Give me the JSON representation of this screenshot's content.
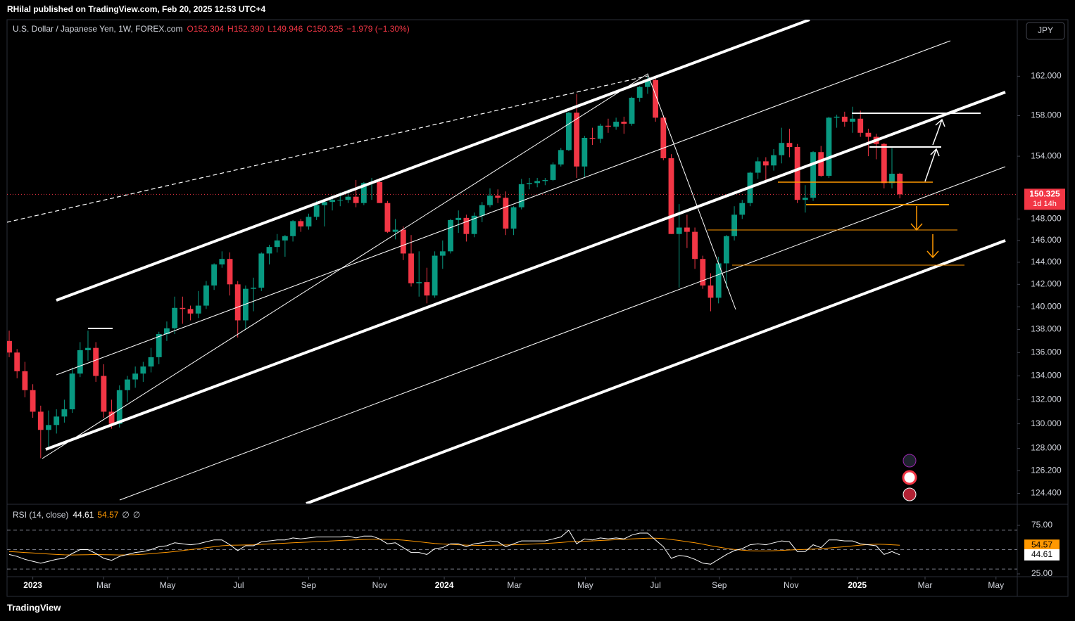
{
  "header": {
    "publisher": "RHilal published on TradingView.com, Feb 20, 2025 12:53 UTC+4"
  },
  "footer": {
    "brand": "TradingView"
  },
  "chart_data": [
    {
      "type": "candlestick",
      "title": "U.S. Dollar / Japanese Yen, 1W, FOREX.com",
      "ohlc_labels": [
        "O152.304",
        "H152.390",
        "L149.946",
        "C150.325"
      ],
      "change_label": "−1.979 (−1.30%)",
      "currency": "JPY",
      "last_price_label": "150.325",
      "countdown": "1d 14h",
      "up_color": "#089981",
      "down_color": "#f23645",
      "log_scale": true,
      "grid": false,
      "xlim": [
        -0.27,
        127.9
      ],
      "xticks": [
        {
          "value": 3,
          "label": "2023"
        },
        {
          "value": 12,
          "label": "Mar"
        },
        {
          "value": 20.1,
          "label": "May"
        },
        {
          "value": 29.1,
          "label": "Jul"
        },
        {
          "value": 38,
          "label": "Sep"
        },
        {
          "value": 47,
          "label": "Nov"
        },
        {
          "value": 55.2,
          "label": "2024"
        },
        {
          "value": 64.1,
          "label": "Mar"
        },
        {
          "value": 73.1,
          "label": "May"
        },
        {
          "value": 82,
          "label": "Jul"
        },
        {
          "value": 90.1,
          "label": "Sep"
        },
        {
          "value": 99.2,
          "label": "Nov"
        },
        {
          "value": 107.6,
          "label": "2025"
        },
        {
          "value": 116.2,
          "label": "Mar"
        },
        {
          "value": 125.2,
          "label": "May"
        }
      ],
      "ylim": [
        123.6,
        167.9
      ],
      "yticks": [
        {
          "value": 162,
          "label": "162.000"
        },
        {
          "value": 158,
          "label": "158.000"
        },
        {
          "value": 154,
          "label": "154.000"
        },
        {
          "value": 148,
          "label": "148.000"
        },
        {
          "value": 146,
          "label": "146.000"
        },
        {
          "value": 144,
          "label": "144.000"
        },
        {
          "value": 142,
          "label": "142.000"
        },
        {
          "value": 140,
          "label": "140.000"
        },
        {
          "value": 138,
          "label": "138.000"
        },
        {
          "value": 136,
          "label": "136.000"
        },
        {
          "value": 134,
          "label": "134.000"
        },
        {
          "value": 132,
          "label": "132.000"
        },
        {
          "value": 130,
          "label": "130.000"
        },
        {
          "value": 128,
          "label": "128.000"
        },
        {
          "value": 126.2,
          "label": "126.200"
        },
        {
          "value": 124.4,
          "label": "124.400"
        }
      ],
      "last_price": 150.325,
      "candles": [
        [
          137.0,
          137.9,
          135.6,
          136.0
        ],
        [
          136.0,
          136.3,
          133.8,
          134.4
        ],
        [
          134.4,
          135.2,
          132.2,
          132.8
        ],
        [
          132.8,
          133.3,
          130.5,
          131.0
        ],
        [
          131.0,
          131.5,
          127.2,
          129.5
        ],
        [
          129.5,
          131.1,
          128.0,
          129.9
        ],
        [
          129.9,
          131.2,
          129.2,
          130.6
        ],
        [
          130.6,
          132.0,
          130.1,
          131.2
        ],
        [
          131.2,
          134.7,
          130.9,
          134.2
        ],
        [
          134.2,
          136.9,
          133.9,
          136.2
        ],
        [
          136.2,
          137.9,
          135.3,
          136.4
        ],
        [
          136.4,
          136.9,
          133.5,
          134.0
        ],
        [
          134.0,
          135.0,
          130.5,
          131.0
        ],
        [
          131.0,
          132.0,
          129.6,
          130.0
        ],
        [
          130.0,
          133.2,
          129.7,
          132.8
        ],
        [
          132.8,
          134.0,
          131.8,
          133.7
        ],
        [
          133.7,
          134.8,
          133.0,
          134.2
        ],
        [
          134.2,
          135.2,
          133.5,
          134.8
        ],
        [
          134.8,
          136.4,
          134.3,
          135.6
        ],
        [
          135.6,
          137.8,
          135.0,
          137.6
        ],
        [
          137.6,
          138.7,
          137.0,
          138.1
        ],
        [
          138.1,
          140.9,
          137.6,
          139.9
        ],
        [
          139.9,
          140.9,
          138.5,
          139.8
        ],
        [
          139.8,
          140.1,
          138.8,
          139.4
        ],
        [
          139.4,
          141.4,
          139.0,
          140.1
        ],
        [
          140.1,
          142.3,
          139.8,
          141.9
        ],
        [
          141.9,
          143.9,
          141.5,
          143.8
        ],
        [
          143.8,
          145.0,
          143.5,
          144.3
        ],
        [
          144.3,
          144.9,
          141.0,
          142.0
        ],
        [
          142.0,
          142.3,
          137.3,
          138.8
        ],
        [
          138.8,
          141.9,
          138.0,
          141.6
        ],
        [
          141.6,
          142.6,
          139.6,
          141.7
        ],
        [
          141.7,
          144.9,
          141.4,
          144.8
        ],
        [
          144.8,
          145.6,
          143.8,
          145.4
        ],
        [
          145.4,
          146.6,
          144.9,
          146.0
        ],
        [
          146.0,
          146.5,
          144.5,
          146.4
        ],
        [
          146.4,
          147.9,
          145.9,
          147.8
        ],
        [
          147.8,
          148.0,
          146.8,
          147.3
        ],
        [
          147.3,
          148.5,
          147.0,
          148.2
        ],
        [
          148.2,
          149.7,
          147.9,
          149.3
        ],
        [
          149.3,
          149.8,
          147.3,
          149.6
        ],
        [
          149.6,
          150.2,
          148.8,
          149.8
        ],
        [
          149.8,
          150.5,
          149.2,
          149.8
        ],
        [
          149.8,
          150.8,
          149.5,
          150.1
        ],
        [
          150.1,
          151.7,
          149.1,
          149.5
        ],
        [
          149.5,
          151.5,
          149.3,
          151.4
        ],
        [
          151.4,
          151.9,
          149.8,
          151.5
        ],
        [
          151.5,
          151.9,
          149.5,
          149.5
        ],
        [
          149.5,
          149.7,
          146.7,
          146.8
        ],
        [
          146.8,
          148.0,
          146.1,
          147.0
        ],
        [
          147.0,
          147.3,
          144.2,
          144.8
        ],
        [
          144.8,
          146.5,
          141.8,
          142.1
        ],
        [
          142.1,
          145.0,
          140.9,
          142.2
        ],
        [
          142.2,
          143.5,
          140.3,
          141.0
        ],
        [
          141.0,
          145.0,
          140.8,
          144.6
        ],
        [
          144.6,
          146.0,
          143.4,
          145.0
        ],
        [
          145.0,
          148.0,
          144.8,
          147.9
        ],
        [
          147.9,
          148.8,
          146.7,
          148.1
        ],
        [
          148.1,
          148.4,
          145.9,
          146.6
        ],
        [
          146.6,
          148.6,
          146.3,
          148.3
        ],
        [
          148.3,
          149.6,
          147.7,
          149.3
        ],
        [
          149.3,
          150.9,
          149.1,
          150.2
        ],
        [
          150.2,
          150.8,
          149.5,
          150.0
        ],
        [
          150.0,
          150.6,
          146.5,
          147.1
        ],
        [
          147.1,
          149.2,
          146.5,
          149.1
        ],
        [
          149.1,
          151.8,
          148.9,
          151.3
        ],
        [
          151.3,
          151.9,
          150.8,
          151.4
        ],
        [
          151.4,
          151.9,
          151.0,
          151.6
        ],
        [
          151.6,
          151.9,
          151.2,
          151.7
        ],
        [
          151.7,
          153.4,
          151.6,
          153.2
        ],
        [
          153.2,
          154.8,
          153.0,
          154.6
        ],
        [
          154.6,
          158.4,
          154.5,
          158.3
        ],
        [
          158.3,
          160.2,
          151.9,
          153.0
        ],
        [
          153.0,
          156.0,
          152.0,
          155.8
        ],
        [
          155.8,
          156.8,
          155.1,
          155.7
        ],
        [
          155.7,
          157.2,
          155.3,
          157.0
        ],
        [
          157.0,
          157.7,
          156.3,
          156.9
        ],
        [
          156.9,
          157.8,
          156.6,
          157.4
        ],
        [
          157.4,
          157.9,
          156.2,
          157.2
        ],
        [
          157.2,
          159.9,
          157.0,
          159.8
        ],
        [
          159.8,
          161.0,
          159.4,
          160.9
        ],
        [
          160.9,
          161.95,
          160.2,
          161.6
        ],
        [
          161.6,
          161.8,
          157.4,
          157.8
        ],
        [
          157.8,
          158.0,
          153.6,
          153.8
        ],
        [
          153.8,
          154.2,
          146.6,
          146.6
        ],
        [
          146.6,
          149.4,
          141.7,
          147.2
        ],
        [
          147.2,
          148.4,
          145.3,
          146.8
        ],
        [
          146.8,
          147.2,
          143.4,
          144.3
        ],
        [
          144.3,
          144.6,
          141.6,
          141.9
        ],
        [
          141.9,
          143.0,
          139.6,
          140.8
        ],
        [
          140.8,
          144.5,
          140.3,
          143.9
        ],
        [
          143.9,
          146.5,
          141.7,
          146.4
        ],
        [
          146.4,
          149.2,
          146.0,
          148.4
        ],
        [
          148.4,
          149.8,
          148.0,
          149.5
        ],
        [
          149.5,
          152.5,
          149.2,
          152.4
        ],
        [
          152.4,
          153.9,
          151.8,
          153.5
        ],
        [
          153.5,
          153.9,
          151.6,
          153.1
        ],
        [
          153.1,
          154.7,
          152.6,
          154.1
        ],
        [
          154.1,
          156.8,
          153.3,
          155.3
        ],
        [
          155.3,
          156.7,
          153.9,
          154.9
        ],
        [
          154.9,
          155.2,
          149.5,
          149.8
        ],
        [
          149.8,
          151.2,
          148.6,
          150.0
        ],
        [
          150.0,
          154.5,
          149.7,
          154.4
        ],
        [
          154.4,
          155.0,
          152.0,
          152.1
        ],
        [
          152.1,
          157.9,
          151.9,
          157.8
        ],
        [
          157.8,
          158.1,
          156.8,
          157.9
        ],
        [
          157.9,
          158.4,
          156.9,
          157.4
        ],
        [
          157.4,
          158.9,
          156.3,
          157.7
        ],
        [
          157.7,
          158.5,
          155.9,
          156.3
        ],
        [
          156.3,
          156.7,
          154.0,
          155.9
        ],
        [
          155.9,
          156.2,
          153.7,
          155.2
        ],
        [
          155.2,
          155.3,
          150.9,
          151.4
        ],
        [
          151.4,
          154.8,
          150.9,
          152.3
        ],
        [
          152.304,
          152.39,
          149.946,
          150.325
        ]
      ]
    },
    {
      "type": "line",
      "title": "RSI (14, close)",
      "header_values": [
        "44.61",
        "54.57",
        "∅",
        "∅"
      ],
      "ylim": [
        22.1,
        96
      ],
      "yticks": [
        {
          "value": 75,
          "label": "75.00"
        },
        {
          "value": 25,
          "label": "25.00"
        }
      ],
      "levels": [
        70,
        50,
        30
      ],
      "series": [
        {
          "color": "#ffffff",
          "last_value_label": "44.61",
          "values": [
            45,
            43,
            40,
            38,
            36,
            38,
            40,
            41,
            46,
            50,
            50,
            46,
            41,
            39,
            43,
            45,
            47,
            48,
            50,
            53,
            54,
            57,
            56,
            55,
            56,
            58,
            60,
            60,
            55,
            49,
            54,
            54,
            58,
            59,
            60,
            60,
            62,
            61,
            62,
            63,
            63,
            63,
            63,
            64,
            62,
            64,
            64,
            61,
            56,
            57,
            52,
            47,
            47,
            45,
            51,
            52,
            56,
            56,
            53,
            56,
            57,
            59,
            58,
            53,
            56,
            59,
            59,
            59,
            59,
            61,
            63,
            70,
            56,
            61,
            60,
            62,
            61,
            62,
            61,
            65,
            67,
            67,
            60,
            53,
            41,
            44,
            43,
            40,
            36,
            35,
            40,
            45,
            49,
            51,
            55,
            56,
            55,
            57,
            59,
            58,
            48,
            48,
            55,
            52,
            60,
            60,
            59,
            59,
            56,
            55,
            54,
            45,
            48,
            44.61
          ]
        },
        {
          "color": "#ff9800",
          "last_value_label": "54.57",
          "values": [
            48,
            47.5,
            47,
            46.5,
            46,
            45.5,
            45,
            44.6,
            44.5,
            44.6,
            44.8,
            45,
            44.8,
            44.6,
            44.5,
            44.6,
            44.8,
            45.2,
            45.8,
            46.5,
            47.2,
            48,
            49,
            50,
            51,
            52,
            53,
            54,
            54.5,
            54.6,
            54.8,
            55,
            55.4,
            55.8,
            56.2,
            56.6,
            57,
            57.4,
            57.8,
            58.2,
            58.6,
            59,
            59.4,
            59.8,
            60.1,
            60.4,
            60.7,
            60.8,
            60.6,
            60.3,
            59.8,
            59,
            58.2,
            57.2,
            56.4,
            55.8,
            55.4,
            55,
            54.6,
            54.4,
            54.3,
            54.4,
            54.6,
            54.8,
            55,
            55.3,
            55.6,
            56,
            56.4,
            56.8,
            57.3,
            58,
            58.3,
            58.6,
            59,
            59.4,
            59.8,
            60.2,
            60.6,
            61,
            61.4,
            61.8,
            61.8,
            61.4,
            60.4,
            59.4,
            58.2,
            57,
            55.6,
            54,
            52.6,
            51.3,
            50.2,
            49.4,
            48.8,
            48.6,
            48.6,
            48.8,
            49.2,
            49.6,
            49.9,
            50.2,
            50.6,
            51,
            51.6,
            52.3,
            53,
            53.8,
            54.6,
            55.2,
            55.6,
            55.4,
            55,
            54.57
          ]
        }
      ]
    }
  ]
}
